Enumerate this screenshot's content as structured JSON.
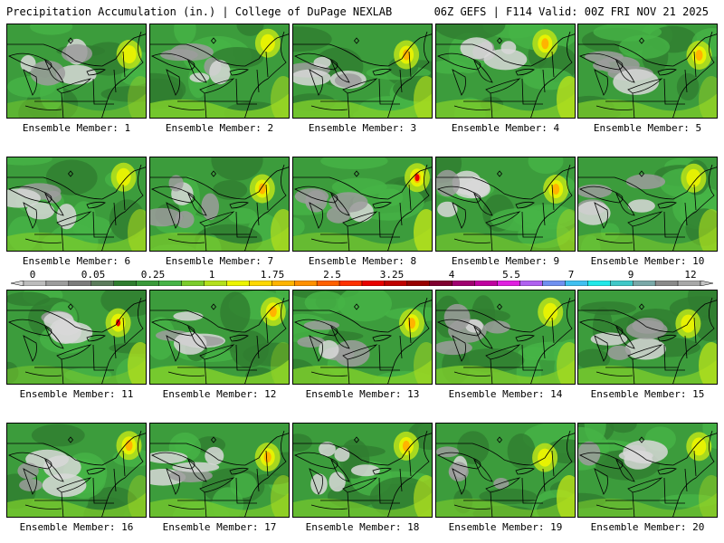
{
  "header": {
    "left": "Precipitation Accumulation (in.) | College of DuPage NEXLAB",
    "right": "06Z GEFS | F114 Valid: 00Z FRI NOV 21 2025"
  },
  "members": [
    {
      "label": "Ensemble Member: 1"
    },
    {
      "label": "Ensemble Member: 2"
    },
    {
      "label": "Ensemble Member: 3"
    },
    {
      "label": "Ensemble Member: 4"
    },
    {
      "label": "Ensemble Member: 5"
    },
    {
      "label": "Ensemble Member: 6"
    },
    {
      "label": "Ensemble Member: 7"
    },
    {
      "label": "Ensemble Member: 8"
    },
    {
      "label": "Ensemble Member: 9"
    },
    {
      "label": "Ensemble Member: 10"
    },
    {
      "label": "Ensemble Member: 11"
    },
    {
      "label": "Ensemble Member: 12"
    },
    {
      "label": "Ensemble Member: 13"
    },
    {
      "label": "Ensemble Member: 14"
    },
    {
      "label": "Ensemble Member: 15"
    },
    {
      "label": "Ensemble Member: 16"
    },
    {
      "label": "Ensemble Member: 17"
    },
    {
      "label": "Ensemble Member: 18"
    },
    {
      "label": "Ensemble Member: 19"
    },
    {
      "label": "Ensemble Member: 20"
    }
  ],
  "colorbar": {
    "ticks": [
      "0",
      "0.05",
      "0.25",
      "1",
      "1.75",
      "2.5",
      "3.25",
      "4",
      "5.5",
      "7",
      "9",
      "12"
    ],
    "colors": [
      "#d8d8d8",
      "#bcbcbc",
      "#9c9c9c",
      "#7c7c7c",
      "#5c7c5c",
      "#2f7d2f",
      "#3a9a3a",
      "#46b446",
      "#7ccc2c",
      "#b4e01c",
      "#ecf400",
      "#ffd800",
      "#ffb400",
      "#ff9000",
      "#ff6000",
      "#ff3000",
      "#e80000",
      "#c00000",
      "#980000",
      "#800030",
      "#a00070",
      "#c000a0",
      "#e020e0",
      "#b060f0",
      "#7090f0",
      "#40c0f0",
      "#20e8e8",
      "#40c8c8",
      "#7aa8a8",
      "#8a8a8a",
      "#a8a8a8",
      "#c4c4c4"
    ]
  }
}
